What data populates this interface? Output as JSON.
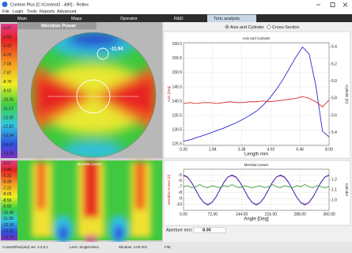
{
  "window": {
    "title": "Contest Plus [C:\\Contest2 - AIR] - Rotlex"
  },
  "menu": [
    "File",
    "Login",
    "Tools",
    "Reports",
    "Advanced"
  ],
  "tabs": [
    "Main",
    "Maps",
    "Operator",
    "R&D",
    "Toric analysis"
  ],
  "maps": [
    {
      "title": "Meridian Power",
      "annotation": "-11.94",
      "scale": [
        "-3.67",
        "-4.56",
        "-5.43",
        "-6.23",
        "-7.05",
        "-7.87",
        "-8.70",
        "-9.52",
        "-10.35",
        "-11.17",
        "-12.00",
        "-12.82",
        "-13.64",
        "-14.47",
        "-15.29"
      ]
    },
    {
      "title": "Meridian power",
      "scale": [
        "-3.67",
        "-4.49",
        "-5.31",
        "-6.39",
        "-7.21",
        "-8.03",
        "-8.56",
        "-9.92",
        "-10.46",
        "-11.28",
        "-12.10",
        "-12.92",
        "-13.74"
      ]
    }
  ],
  "view_options": [
    "Axis and Cylinder",
    "Cross-Section"
  ],
  "plots": [
    {
      "type": "line",
      "title": "Axis and Cylinder",
      "xlabel": "Length mm",
      "ylabel": "Axis [Deg]",
      "y2label": "Cylinder [D]",
      "x": [
        0.3,
        0.65,
        1.0,
        1.35,
        1.7,
        2.05,
        2.4,
        2.75,
        3.1,
        3.45,
        3.8,
        4.15,
        4.5,
        4.85,
        5.2,
        5.55,
        5.9,
        6.25,
        6.6,
        6.95,
        7.3,
        7.65,
        8.0
      ],
      "xlim": [
        0.3,
        8.0
      ],
      "xticks": [
        {
          "value": 0.3,
          "label": "0.30"
        },
        1.84,
        3.38,
        4.92,
        6.46,
        {
          "value": 8,
          "label": "8.00"
        }
      ],
      "ylim": [
        125,
        161
      ],
      "yticks": [
        125.5,
        130.5,
        135.5,
        140.5,
        145.5,
        150.5,
        155.5,
        160.5
      ],
      "y2lim": [
        5.25,
        6.45
      ],
      "y2ticks": [
        5.4,
        5.6,
        5.8,
        {
          "value": 6,
          "label": "6.0"
        },
        6.2,
        6.4
      ],
      "series": [
        {
          "color": "#2a2ad0",
          "values": [
            126.5,
            127,
            127.8,
            128.5,
            129.3,
            130.2,
            131,
            132,
            133,
            134.2,
            135.5,
            137,
            139,
            141.5,
            144.5,
            148,
            152,
            156,
            159.5,
            157,
            146,
            130,
            128
          ]
        },
        {
          "color": "#d83030",
          "axis": "y2",
          "values": [
            5.74,
            5.75,
            5.74,
            5.75,
            5.75,
            5.74,
            5.75,
            5.76,
            5.75,
            5.75,
            5.76,
            5.76,
            5.77,
            5.76,
            5.77,
            5.78,
            5.79,
            5.8,
            5.82,
            5.8,
            5.76,
            5.7,
            5.78
          ]
        }
      ]
    },
    {
      "type": "line",
      "title": "Meridian power",
      "xlabel": "Angle [Deg]",
      "ylabel": "Meridian Power [D]",
      "y2label": "Cylinder",
      "x": [
        0,
        10,
        20,
        30,
        40,
        50,
        60,
        70,
        80,
        90,
        100,
        110,
        120,
        130,
        140,
        150,
        160,
        170,
        180,
        190,
        200,
        210,
        220,
        230,
        240,
        250,
        260,
        270,
        280,
        290,
        300,
        310,
        320,
        330,
        340,
        350,
        360
      ],
      "xlim": [
        0,
        360
      ],
      "xticks": [
        {
          "value": 0,
          "label": "0.00"
        },
        {
          "value": 72,
          "label": "72.00"
        },
        {
          "value": 144,
          "label": "144.00"
        },
        {
          "value": 216,
          "label": "216.00"
        },
        {
          "value": 288,
          "label": "288.00"
        },
        {
          "value": 360,
          "label": "360.00"
        }
      ],
      "ylim": [
        -11,
        -4
      ],
      "yticks": [
        -10,
        -9,
        -8,
        -7,
        -6,
        -5
      ],
      "y2lim": [
        0.9,
        1.3
      ],
      "y2ticks": [
        {
          "value": 1,
          "label": "1.0"
        },
        1.1,
        1.2
      ],
      "series": [
        {
          "color": "#d83030",
          "values": [
            -5.1,
            -5.4,
            -6.3,
            -7.5,
            -8.8,
            -9.7,
            -10.1,
            -9.7,
            -8.8,
            -7.5,
            -6.2,
            -5.3,
            -5.1,
            -5.4,
            -6.3,
            -7.5,
            -8.8,
            -9.7,
            -10.1,
            -9.7,
            -8.8,
            -7.5,
            -6.2,
            -5.3,
            -5.1,
            -5.4,
            -6.3,
            -7.5,
            -8.8,
            -9.7,
            -10.1,
            -9.7,
            -8.8,
            -7.5,
            -6.2,
            -5.3,
            -5.1
          ]
        },
        {
          "color": "#2a2ad0",
          "values": [
            -5,
            -5.33,
            -6.25,
            -7.5,
            -8.75,
            -9.67,
            -10,
            -9.67,
            -8.75,
            -7.5,
            -6.25,
            -5.33,
            -5,
            -5.33,
            -6.25,
            -7.5,
            -8.75,
            -9.67,
            -10,
            -9.67,
            -8.75,
            -7.5,
            -6.25,
            -5.33,
            -5,
            -5.33,
            -6.25,
            -7.5,
            -8.75,
            -9.67,
            -10,
            -9.67,
            -8.75,
            -7.5,
            -6.25,
            -5.33,
            -5
          ]
        },
        {
          "color": "#3a9a3a",
          "axis": "y2",
          "values": [
            1.13,
            1.14,
            1.12,
            1.13,
            1.15,
            1.13,
            1.12,
            1.14,
            1.13,
            1.12,
            1.14,
            1.13,
            1.15,
            1.13,
            1.12,
            1.14,
            1.13,
            1.12,
            1.13,
            1.14,
            1.12,
            1.13,
            1.15,
            1.13,
            1.12,
            1.14,
            1.13,
            1.12,
            1.14,
            1.13,
            1.15,
            1.13,
            1.12,
            1.14,
            1.13,
            1.12,
            1.13
          ]
        }
      ]
    }
  ],
  "aperture": {
    "label": "Aperture mm:",
    "value": "8.00"
  },
  "status": [
    "ContestPlus(x64) ver. 4.0.0.1",
    "Lens: SingleVision",
    "Window: 4.00 mm",
    "File:"
  ]
}
